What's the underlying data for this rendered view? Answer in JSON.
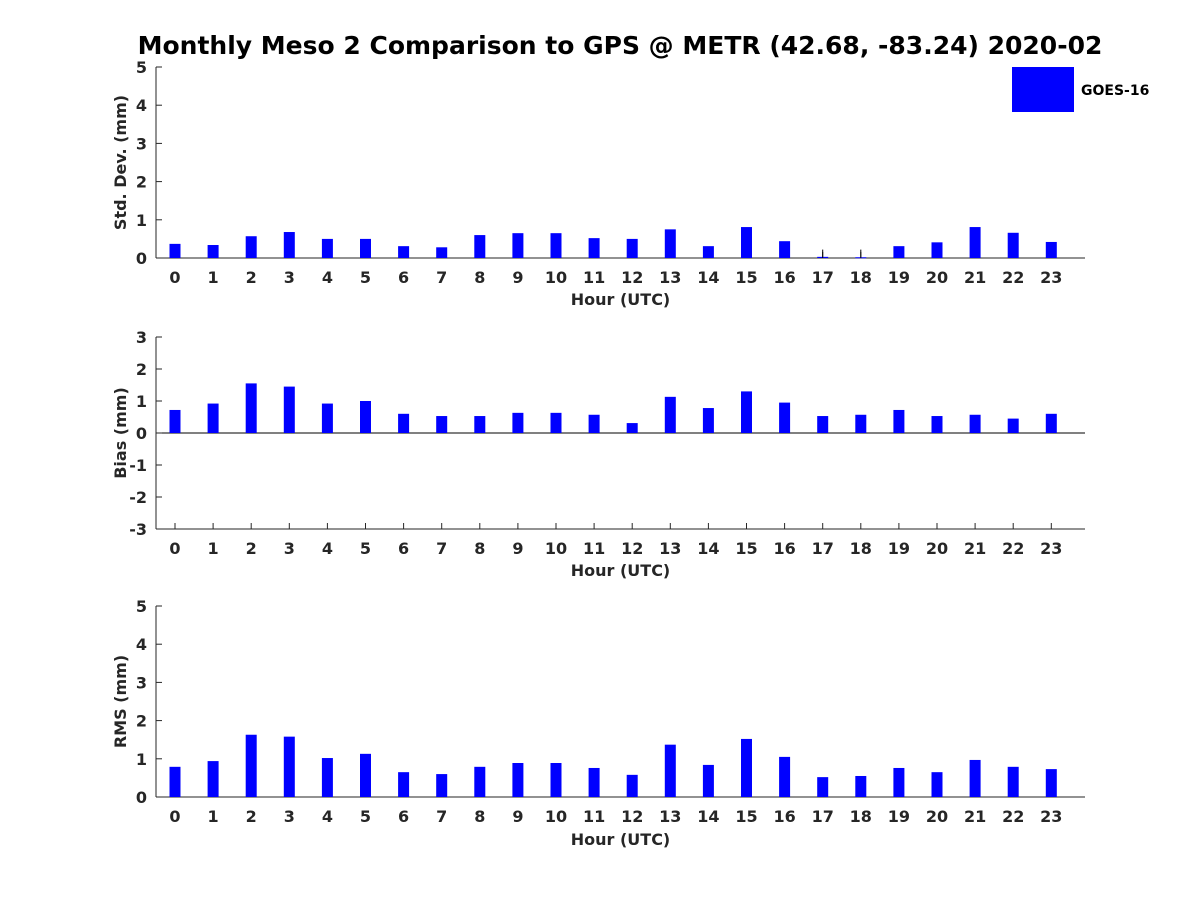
{
  "title": "Monthly Meso 2 Comparison to GPS @ METR (42.68, -83.24) 2020-02",
  "legend": {
    "label": "GOES-16",
    "color": "#0000FF",
    "position": "top-right"
  },
  "bar_color": "#0000FF",
  "chart_data": [
    {
      "type": "bar",
      "id": "std",
      "ylabel": "Std. Dev. (mm)",
      "xlabel": "Hour (UTC)",
      "ylim": [
        0,
        5
      ],
      "yticks": [
        0,
        1,
        2,
        3,
        4,
        5
      ],
      "categories": [
        "0",
        "1",
        "2",
        "3",
        "4",
        "5",
        "6",
        "7",
        "8",
        "9",
        "10",
        "11",
        "12",
        "13",
        "14",
        "15",
        "16",
        "17",
        "18",
        "19",
        "20",
        "21",
        "22",
        "23"
      ],
      "series": [
        {
          "name": "GOES-16",
          "values": [
            0.37,
            0.34,
            0.57,
            0.68,
            0.5,
            0.5,
            0.31,
            0.28,
            0.6,
            0.65,
            0.65,
            0.52,
            0.5,
            0.75,
            0.31,
            0.81,
            0.44,
            0.03,
            0.02,
            0.31,
            0.41,
            0.81,
            0.66,
            0.42
          ]
        }
      ],
      "error_bars": [
        {
          "hour": "17",
          "low": 0.0,
          "high": 0.22
        },
        {
          "hour": "18",
          "low": 0.0,
          "high": 0.22
        }
      ],
      "grid": false
    },
    {
      "type": "bar",
      "id": "bias",
      "ylabel": "Bias (mm)",
      "xlabel": "Hour (UTC)",
      "ylim": [
        -3,
        3
      ],
      "yticks": [
        -3,
        -2,
        -1,
        0,
        1,
        2,
        3
      ],
      "categories": [
        "0",
        "1",
        "2",
        "3",
        "4",
        "5",
        "6",
        "7",
        "8",
        "9",
        "10",
        "11",
        "12",
        "13",
        "14",
        "15",
        "16",
        "17",
        "18",
        "19",
        "20",
        "21",
        "22",
        "23"
      ],
      "series": [
        {
          "name": "GOES-16",
          "values": [
            0.72,
            0.92,
            1.55,
            1.45,
            0.92,
            1.0,
            0.6,
            0.53,
            0.53,
            0.63,
            0.63,
            0.57,
            0.31,
            1.13,
            0.78,
            1.3,
            0.95,
            0.53,
            0.57,
            0.72,
            0.53,
            0.57,
            0.45,
            0.6
          ]
        }
      ],
      "grid": false
    },
    {
      "type": "bar",
      "id": "rms",
      "ylabel": "RMS (mm)",
      "xlabel": "Hour (UTC)",
      "ylim": [
        0,
        5
      ],
      "yticks": [
        0,
        1,
        2,
        3,
        4,
        5
      ],
      "categories": [
        "0",
        "1",
        "2",
        "3",
        "4",
        "5",
        "6",
        "7",
        "8",
        "9",
        "10",
        "11",
        "12",
        "13",
        "14",
        "15",
        "16",
        "17",
        "18",
        "19",
        "20",
        "21",
        "22",
        "23"
      ],
      "series": [
        {
          "name": "GOES-16",
          "values": [
            0.79,
            0.94,
            1.63,
            1.58,
            1.02,
            1.13,
            0.65,
            0.6,
            0.79,
            0.89,
            0.89,
            0.76,
            0.58,
            1.37,
            0.84,
            1.52,
            1.05,
            0.52,
            0.55,
            0.76,
            0.65,
            0.97,
            0.79,
            0.73
          ]
        }
      ],
      "grid": false
    }
  ]
}
